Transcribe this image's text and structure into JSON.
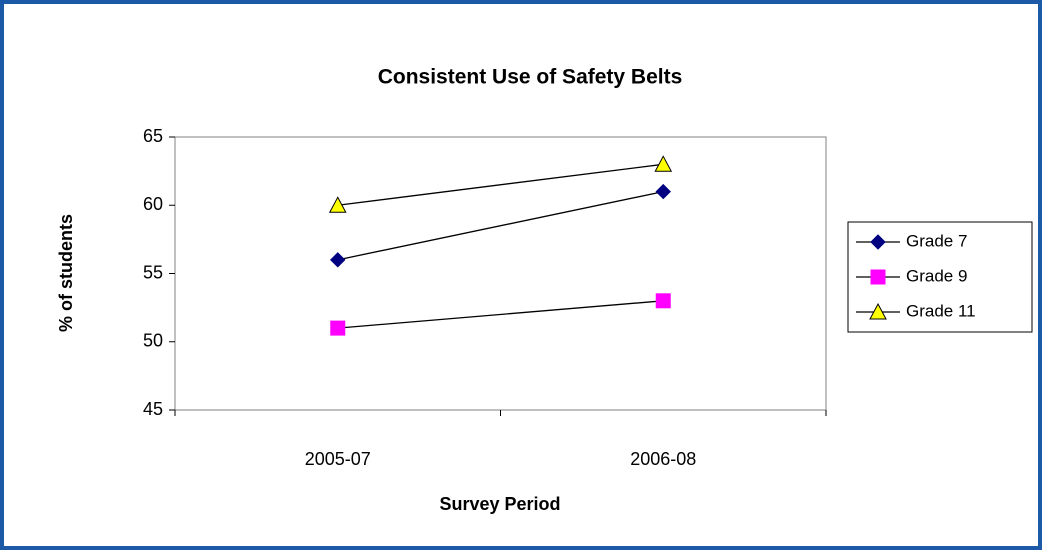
{
  "chart_data": {
    "type": "line",
    "title": "Consistent Use of Safety Belts",
    "x_label": "Survey Period",
    "y_label": "% of students",
    "categories": [
      "2005-07",
      "2006-08"
    ],
    "series": [
      {
        "name": "Grade 7",
        "color": "#000080",
        "marker": "diamond",
        "values": [
          56,
          61
        ]
      },
      {
        "name": "Grade 9",
        "color": "#ff00ff",
        "marker": "square",
        "values": [
          51,
          53
        ]
      },
      {
        "name": "Grade 11",
        "color": "#ffff00",
        "marker": "triangle",
        "values": [
          60,
          63
        ]
      }
    ],
    "ylim": [
      45,
      65
    ],
    "yticks": [
      45,
      50,
      55,
      60,
      65
    ],
    "grid": false,
    "legend": "right"
  }
}
